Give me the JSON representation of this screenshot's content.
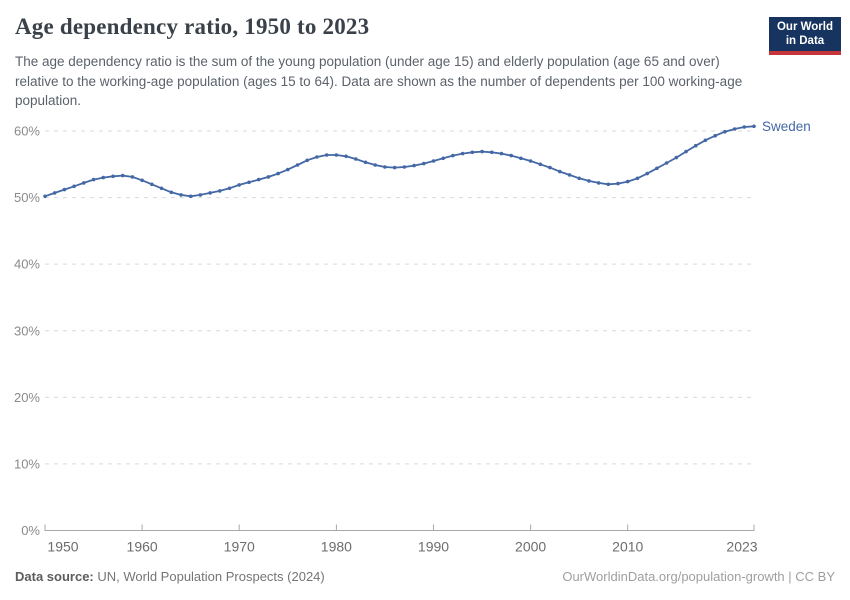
{
  "header": {
    "title": "Age dependency ratio, 1950 to 2023",
    "subtitle": "The age dependency ratio is the sum of the young population (under age 15) and elderly population (age 65 and over) relative to the working-age population (ages 15 to 64). Data are shown as the number of dependents per 100 working-age population.",
    "logo": {
      "line1": "Our World",
      "line2": "in Data"
    }
  },
  "chart_data": {
    "type": "line",
    "title": "Age dependency ratio, 1950 to 2023",
    "xlabel": "",
    "ylabel": "",
    "xlim": [
      1950,
      2023
    ],
    "ylim": [
      0,
      62
    ],
    "grid": "horizontal-dashed",
    "legend": "end-of-line-label",
    "x_ticks": [
      1950,
      1960,
      1970,
      1980,
      1990,
      2000,
      2010,
      2023
    ],
    "y_ticks": [
      0,
      10,
      20,
      30,
      40,
      50,
      60
    ],
    "y_tick_suffix": "%",
    "series": [
      {
        "name": "Sweden",
        "color": "#4468a5",
        "x": [
          1950,
          1951,
          1952,
          1953,
          1954,
          1955,
          1956,
          1957,
          1958,
          1959,
          1960,
          1961,
          1962,
          1963,
          1964,
          1965,
          1966,
          1967,
          1968,
          1969,
          1970,
          1971,
          1972,
          1973,
          1974,
          1975,
          1976,
          1977,
          1978,
          1979,
          1980,
          1981,
          1982,
          1983,
          1984,
          1985,
          1986,
          1987,
          1988,
          1989,
          1990,
          1991,
          1992,
          1993,
          1994,
          1995,
          1996,
          1997,
          1998,
          1999,
          2000,
          2001,
          2002,
          2003,
          2004,
          2005,
          2006,
          2007,
          2008,
          2009,
          2010,
          2011,
          2012,
          2013,
          2014,
          2015,
          2016,
          2017,
          2018,
          2019,
          2020,
          2021,
          2022,
          2023
        ],
        "values": [
          50.2,
          50.7,
          51.2,
          51.7,
          52.2,
          52.7,
          53.0,
          53.2,
          53.3,
          53.1,
          52.6,
          52.0,
          51.4,
          50.8,
          50.4,
          50.2,
          50.4,
          50.7,
          51.0,
          51.4,
          51.9,
          52.3,
          52.7,
          53.1,
          53.6,
          54.2,
          54.9,
          55.6,
          56.1,
          56.4,
          56.4,
          56.2,
          55.8,
          55.3,
          54.9,
          54.6,
          54.5,
          54.6,
          54.8,
          55.1,
          55.5,
          55.9,
          56.3,
          56.6,
          56.8,
          56.9,
          56.8,
          56.6,
          56.3,
          55.9,
          55.5,
          55.0,
          54.5,
          53.9,
          53.4,
          52.9,
          52.5,
          52.2,
          52.0,
          52.1,
          52.4,
          52.9,
          53.6,
          54.4,
          55.2,
          56.0,
          56.9,
          57.8,
          58.6,
          59.3,
          59.9,
          60.3,
          60.6,
          60.7
        ]
      }
    ]
  },
  "colors": {
    "line": "#4468a5",
    "grid": "#d9d9d9",
    "axis": "#a8a8a8",
    "y_label": "#8a8a8a",
    "x_label": "#6d6d6d",
    "logo_bg": "#17335f",
    "logo_accent": "#c5353a"
  },
  "footer": {
    "source_label": "Data source:",
    "source_value": " UN, World Population Prospects (2024)",
    "credit": "OurWorldinData.org/population-growth | CC BY"
  }
}
